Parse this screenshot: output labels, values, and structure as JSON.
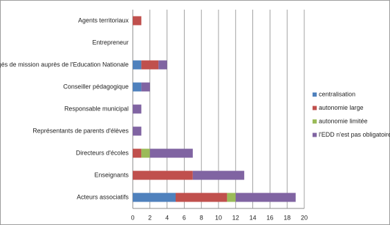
{
  "chart_data": {
    "type": "stacked-bar-horizontal",
    "categories": [
      "Agents territoriaux",
      "Entrepreneur",
      "Chargés de mission auprès de l'Education Nationale",
      "Conseiller pédagogique",
      "Responsable municipal",
      "Représentants de parents d'élèves",
      "Directeurs d'écoles",
      "Enseignants",
      "Acteurs associatifs"
    ],
    "series": [
      {
        "name": "centralisation",
        "color": "#4f81bd",
        "values": [
          0,
          0,
          1,
          1,
          0,
          0,
          0,
          0,
          5
        ]
      },
      {
        "name": "autonomie large",
        "color": "#c0504d",
        "values": [
          1,
          0,
          2,
          0,
          0,
          0,
          1,
          7,
          6
        ]
      },
      {
        "name": "autonomie limitée",
        "color": "#9bbb59",
        "values": [
          0,
          0,
          0,
          0,
          0,
          0,
          1,
          0,
          1
        ]
      },
      {
        "name": "l'EDD n'est pas obligatoire",
        "color": "#8064a2",
        "values": [
          0,
          0,
          1,
          1,
          1,
          1,
          5,
          6,
          7
        ]
      }
    ],
    "xlim": [
      0,
      20
    ],
    "xticks": [
      0,
      2,
      4,
      6,
      8,
      10,
      12,
      14,
      16,
      18,
      20
    ],
    "grid": true,
    "legend": "right"
  }
}
